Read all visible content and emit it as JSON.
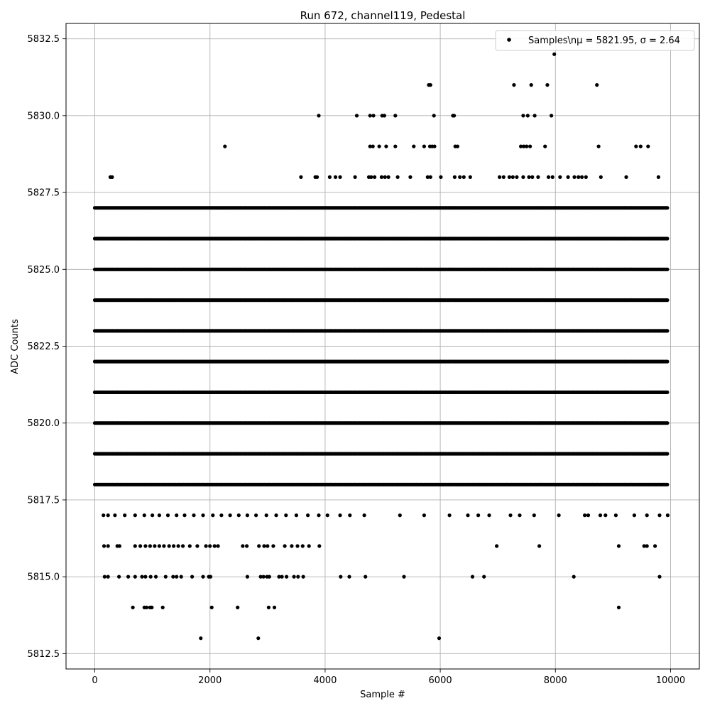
{
  "chart_data": {
    "type": "scatter",
    "title": "Run 672, channel119, Pedestal",
    "xlabel": "Sample #",
    "ylabel": "ADC Counts",
    "xlim": [
      -500,
      10500
    ],
    "ylim": [
      5812.0,
      5833.0
    ],
    "xticks": [
      0,
      2000,
      4000,
      6000,
      8000,
      10000
    ],
    "xtick_labels": [
      "0",
      "2000",
      "4000",
      "6000",
      "8000",
      "10000"
    ],
    "yticks": [
      5812.5,
      5815.0,
      5817.5,
      5820.0,
      5822.5,
      5825.0,
      5827.5,
      5830.0,
      5832.5
    ],
    "ytick_labels": [
      "5812.5",
      "5815.0",
      "5817.5",
      "5820.0",
      "5822.5",
      "5825.0",
      "5827.5",
      "5830.0",
      "5832.5"
    ],
    "grid": true,
    "legend_position": "top-right",
    "legend_label": "Samples\\nμ = 5821.95, σ = 2.64",
    "marker_color": "#000000",
    "series": [
      {
        "name": "Samples\\nμ = 5821.95, σ = 2.64",
        "dense_levels": [
          5818,
          5819,
          5820,
          5821,
          5822,
          5823,
          5824,
          5825,
          5826,
          5827
        ],
        "sample_range": [
          0,
          9960
        ],
        "points": [
          [
            7980,
            5832
          ],
          [
            5800,
            5831
          ],
          [
            5830,
            5831
          ],
          [
            7280,
            5831
          ],
          [
            7580,
            5831
          ],
          [
            7860,
            5831
          ],
          [
            8720,
            5831
          ],
          [
            3890,
            5830
          ],
          [
            4550,
            5830
          ],
          [
            4780,
            5830
          ],
          [
            4840,
            5830
          ],
          [
            4990,
            5830
          ],
          [
            5030,
            5830
          ],
          [
            5220,
            5830
          ],
          [
            5890,
            5830
          ],
          [
            6220,
            5830
          ],
          [
            6240,
            5830
          ],
          [
            7440,
            5830
          ],
          [
            7520,
            5830
          ],
          [
            7640,
            5830
          ],
          [
            7930,
            5830
          ],
          [
            2260,
            5829
          ],
          [
            4780,
            5829
          ],
          [
            4830,
            5829
          ],
          [
            4940,
            5829
          ],
          [
            5060,
            5829
          ],
          [
            5220,
            5829
          ],
          [
            5540,
            5829
          ],
          [
            5720,
            5829
          ],
          [
            5820,
            5829
          ],
          [
            5860,
            5829
          ],
          [
            5900,
            5829
          ],
          [
            6260,
            5829
          ],
          [
            6300,
            5829
          ],
          [
            7400,
            5829
          ],
          [
            7450,
            5829
          ],
          [
            7500,
            5829
          ],
          [
            7560,
            5829
          ],
          [
            7820,
            5829
          ],
          [
            8750,
            5829
          ],
          [
            9400,
            5829
          ],
          [
            9480,
            5829
          ],
          [
            9610,
            5829
          ],
          [
            270,
            5828
          ],
          [
            300,
            5828
          ],
          [
            3580,
            5828
          ],
          [
            3830,
            5828
          ],
          [
            3860,
            5828
          ],
          [
            4080,
            5828
          ],
          [
            4180,
            5828
          ],
          [
            4260,
            5828
          ],
          [
            4520,
            5828
          ],
          [
            4760,
            5828
          ],
          [
            4800,
            5828
          ],
          [
            4860,
            5828
          ],
          [
            4980,
            5828
          ],
          [
            5040,
            5828
          ],
          [
            5100,
            5828
          ],
          [
            5260,
            5828
          ],
          [
            5480,
            5828
          ],
          [
            5780,
            5828
          ],
          [
            5830,
            5828
          ],
          [
            6010,
            5828
          ],
          [
            6250,
            5828
          ],
          [
            6340,
            5828
          ],
          [
            6410,
            5828
          ],
          [
            6520,
            5828
          ],
          [
            7030,
            5828
          ],
          [
            7100,
            5828
          ],
          [
            7200,
            5828
          ],
          [
            7260,
            5828
          ],
          [
            7330,
            5828
          ],
          [
            7440,
            5828
          ],
          [
            7540,
            5828
          ],
          [
            7600,
            5828
          ],
          [
            7700,
            5828
          ],
          [
            7880,
            5828
          ],
          [
            7950,
            5828
          ],
          [
            8080,
            5828
          ],
          [
            8220,
            5828
          ],
          [
            8330,
            5828
          ],
          [
            8400,
            5828
          ],
          [
            8460,
            5828
          ],
          [
            8530,
            5828
          ],
          [
            8790,
            5828
          ],
          [
            9230,
            5828
          ],
          [
            9790,
            5828
          ],
          [
            150,
            5817
          ],
          [
            230,
            5817
          ],
          [
            350,
            5817
          ],
          [
            520,
            5817
          ],
          [
            700,
            5817
          ],
          [
            860,
            5817
          ],
          [
            1000,
            5817
          ],
          [
            1120,
            5817
          ],
          [
            1270,
            5817
          ],
          [
            1420,
            5817
          ],
          [
            1560,
            5817
          ],
          [
            1720,
            5817
          ],
          [
            1880,
            5817
          ],
          [
            2050,
            5817
          ],
          [
            2200,
            5817
          ],
          [
            2350,
            5817
          ],
          [
            2500,
            5817
          ],
          [
            2650,
            5817
          ],
          [
            2800,
            5817
          ],
          [
            2980,
            5817
          ],
          [
            3150,
            5817
          ],
          [
            3320,
            5817
          ],
          [
            3500,
            5817
          ],
          [
            3700,
            5817
          ],
          [
            3890,
            5817
          ],
          [
            4040,
            5817
          ],
          [
            4260,
            5817
          ],
          [
            4430,
            5817
          ],
          [
            4680,
            5817
          ],
          [
            5300,
            5817
          ],
          [
            5720,
            5817
          ],
          [
            6160,
            5817
          ],
          [
            6480,
            5817
          ],
          [
            6660,
            5817
          ],
          [
            6850,
            5817
          ],
          [
            7220,
            5817
          ],
          [
            7380,
            5817
          ],
          [
            7630,
            5817
          ],
          [
            8060,
            5817
          ],
          [
            8510,
            5817
          ],
          [
            8570,
            5817
          ],
          [
            8780,
            5817
          ],
          [
            8870,
            5817
          ],
          [
            9050,
            5817
          ],
          [
            9370,
            5817
          ],
          [
            9590,
            5817
          ],
          [
            9810,
            5817
          ],
          [
            9950,
            5817
          ],
          [
            160,
            5816
          ],
          [
            230,
            5816
          ],
          [
            390,
            5816
          ],
          [
            430,
            5816
          ],
          [
            700,
            5816
          ],
          [
            790,
            5816
          ],
          [
            880,
            5816
          ],
          [
            960,
            5816
          ],
          [
            1040,
            5816
          ],
          [
            1120,
            5816
          ],
          [
            1200,
            5816
          ],
          [
            1290,
            5816
          ],
          [
            1370,
            5816
          ],
          [
            1450,
            5816
          ],
          [
            1530,
            5816
          ],
          [
            1650,
            5816
          ],
          [
            1780,
            5816
          ],
          [
            1930,
            5816
          ],
          [
            2000,
            5816
          ],
          [
            2080,
            5816
          ],
          [
            2140,
            5816
          ],
          [
            2570,
            5816
          ],
          [
            2640,
            5816
          ],
          [
            2850,
            5816
          ],
          [
            2940,
            5816
          ],
          [
            3000,
            5816
          ],
          [
            3100,
            5816
          ],
          [
            3300,
            5816
          ],
          [
            3420,
            5816
          ],
          [
            3520,
            5816
          ],
          [
            3610,
            5816
          ],
          [
            3720,
            5816
          ],
          [
            3900,
            5816
          ],
          [
            6980,
            5816
          ],
          [
            7720,
            5816
          ],
          [
            9100,
            5816
          ],
          [
            9540,
            5816
          ],
          [
            9590,
            5816
          ],
          [
            9730,
            5816
          ],
          [
            170,
            5815
          ],
          [
            230,
            5815
          ],
          [
            420,
            5815
          ],
          [
            580,
            5815
          ],
          [
            700,
            5815
          ],
          [
            820,
            5815
          ],
          [
            880,
            5815
          ],
          [
            970,
            5815
          ],
          [
            1060,
            5815
          ],
          [
            1230,
            5815
          ],
          [
            1360,
            5815
          ],
          [
            1420,
            5815
          ],
          [
            1500,
            5815
          ],
          [
            1690,
            5815
          ],
          [
            1880,
            5815
          ],
          [
            1980,
            5815
          ],
          [
            2010,
            5815
          ],
          [
            2650,
            5815
          ],
          [
            2880,
            5815
          ],
          [
            2930,
            5815
          ],
          [
            2990,
            5815
          ],
          [
            3030,
            5815
          ],
          [
            3200,
            5815
          ],
          [
            3250,
            5815
          ],
          [
            3330,
            5815
          ],
          [
            3460,
            5815
          ],
          [
            3530,
            5815
          ],
          [
            3620,
            5815
          ],
          [
            4270,
            5815
          ],
          [
            4420,
            5815
          ],
          [
            4700,
            5815
          ],
          [
            5370,
            5815
          ],
          [
            6560,
            5815
          ],
          [
            6760,
            5815
          ],
          [
            8320,
            5815
          ],
          [
            9810,
            5815
          ],
          [
            660,
            5814
          ],
          [
            860,
            5814
          ],
          [
            900,
            5814
          ],
          [
            960,
            5814
          ],
          [
            990,
            5814
          ],
          [
            1180,
            5814
          ],
          [
            2030,
            5814
          ],
          [
            2480,
            5814
          ],
          [
            3020,
            5814
          ],
          [
            3120,
            5814
          ],
          [
            9100,
            5814
          ],
          [
            1840,
            5813
          ],
          [
            2840,
            5813
          ],
          [
            5980,
            5813
          ]
        ]
      }
    ]
  }
}
